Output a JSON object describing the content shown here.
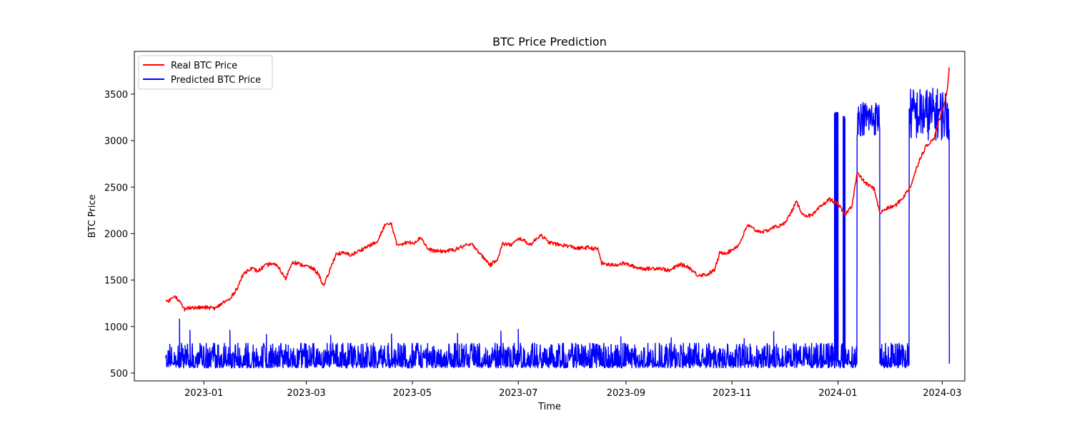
{
  "chart_data": {
    "type": "line",
    "title": "BTC Price Prediction",
    "xlabel": "Time",
    "ylabel": "BTC Price",
    "x_ticks": [
      "2023-01",
      "2023-03",
      "2023-05",
      "2023-07",
      "2023-09",
      "2023-11",
      "2024-01",
      "2024-03"
    ],
    "y_ticks": [
      500,
      1000,
      1500,
      2000,
      2500,
      3000,
      3500
    ],
    "xlim": [
      "2022-11-22",
      "2024-03-14"
    ],
    "ylim": [
      415,
      3960
    ],
    "grid": false,
    "legend_position": "upper-left",
    "series": [
      {
        "name": "Real BTC Price",
        "color": "#ff0000",
        "points": [
          [
            "2022-12-10",
            1265
          ],
          [
            "2022-12-13",
            1290
          ],
          [
            "2022-12-15",
            1340
          ],
          [
            "2022-12-18",
            1270
          ],
          [
            "2022-12-21",
            1180
          ],
          [
            "2022-12-24",
            1210
          ],
          [
            "2022-12-27",
            1200
          ],
          [
            "2022-12-30",
            1205
          ],
          [
            "2023-01-03",
            1205
          ],
          [
            "2023-01-08",
            1195
          ],
          [
            "2023-01-12",
            1260
          ],
          [
            "2023-01-16",
            1290
          ],
          [
            "2023-01-20",
            1410
          ],
          [
            "2023-01-24",
            1570
          ],
          [
            "2023-01-28",
            1630
          ],
          [
            "2023-02-01",
            1595
          ],
          [
            "2023-02-05",
            1650
          ],
          [
            "2023-02-09",
            1680
          ],
          [
            "2023-02-13",
            1640
          ],
          [
            "2023-02-17",
            1510
          ],
          [
            "2023-02-21",
            1700
          ],
          [
            "2023-02-25",
            1670
          ],
          [
            "2023-03-01",
            1650
          ],
          [
            "2023-03-05",
            1620
          ],
          [
            "2023-03-08",
            1565
          ],
          [
            "2023-03-11",
            1430
          ],
          [
            "2023-03-14",
            1580
          ],
          [
            "2023-03-18",
            1780
          ],
          [
            "2023-03-22",
            1790
          ],
          [
            "2023-03-27",
            1770
          ],
          [
            "2023-04-01",
            1820
          ],
          [
            "2023-04-06",
            1870
          ],
          [
            "2023-04-11",
            1910
          ],
          [
            "2023-04-15",
            2090
          ],
          [
            "2023-04-19",
            2105
          ],
          [
            "2023-04-22",
            1880
          ],
          [
            "2023-04-27",
            1900
          ],
          [
            "2023-05-02",
            1905
          ],
          [
            "2023-05-06",
            1960
          ],
          [
            "2023-05-10",
            1830
          ],
          [
            "2023-05-15",
            1810
          ],
          [
            "2023-05-20",
            1810
          ],
          [
            "2023-05-26",
            1830
          ],
          [
            "2023-05-31",
            1870
          ],
          [
            "2023-06-05",
            1880
          ],
          [
            "2023-06-10",
            1760
          ],
          [
            "2023-06-15",
            1660
          ],
          [
            "2023-06-19",
            1730
          ],
          [
            "2023-06-22",
            1890
          ],
          [
            "2023-06-27",
            1880
          ],
          [
            "2023-07-02",
            1950
          ],
          [
            "2023-07-08",
            1880
          ],
          [
            "2023-07-14",
            1990
          ],
          [
            "2023-07-18",
            1910
          ],
          [
            "2023-07-24",
            1880
          ],
          [
            "2023-07-29",
            1870
          ],
          [
            "2023-08-04",
            1840
          ],
          [
            "2023-08-10",
            1850
          ],
          [
            "2023-08-16",
            1830
          ],
          [
            "2023-08-18",
            1680
          ],
          [
            "2023-08-24",
            1660
          ],
          [
            "2023-08-31",
            1680
          ],
          [
            "2023-09-07",
            1635
          ],
          [
            "2023-09-13",
            1620
          ],
          [
            "2023-09-20",
            1630
          ],
          [
            "2023-09-26",
            1600
          ],
          [
            "2023-10-02",
            1670
          ],
          [
            "2023-10-07",
            1640
          ],
          [
            "2023-10-12",
            1555
          ],
          [
            "2023-10-18",
            1560
          ],
          [
            "2023-10-22",
            1610
          ],
          [
            "2023-10-25",
            1790
          ],
          [
            "2023-10-30",
            1800
          ],
          [
            "2023-11-05",
            1880
          ],
          [
            "2023-11-10",
            2090
          ],
          [
            "2023-11-15",
            2030
          ],
          [
            "2023-11-20",
            2020
          ],
          [
            "2023-11-25",
            2070
          ],
          [
            "2023-11-30",
            2090
          ],
          [
            "2023-12-04",
            2190
          ],
          [
            "2023-12-08",
            2340
          ],
          [
            "2023-12-12",
            2200
          ],
          [
            "2023-12-17",
            2190
          ],
          [
            "2023-12-22",
            2290
          ],
          [
            "2023-12-27",
            2370
          ],
          [
            "2024-01-01",
            2320
          ],
          [
            "2024-01-05",
            2200
          ],
          [
            "2024-01-09",
            2300
          ],
          [
            "2024-01-12",
            2650
          ],
          [
            "2024-01-17",
            2540
          ],
          [
            "2024-01-22",
            2480
          ],
          [
            "2024-01-25",
            2220
          ],
          [
            "2024-01-29",
            2270
          ],
          [
            "2024-02-03",
            2300
          ],
          [
            "2024-02-08",
            2400
          ],
          [
            "2024-02-12",
            2520
          ],
          [
            "2024-02-17",
            2800
          ],
          [
            "2024-02-21",
            2950
          ],
          [
            "2024-02-25",
            3010
          ],
          [
            "2024-02-28",
            3200
          ],
          [
            "2024-03-02",
            3380
          ],
          [
            "2024-03-04",
            3560
          ],
          [
            "2024-03-05",
            3790
          ]
        ]
      },
      {
        "name": "Predicted BTC Price",
        "color": "#0000ff",
        "start": "2022-12-10",
        "end": "2024-03-05",
        "baseline_min": 555,
        "baseline_max": 820,
        "spikes": [
          [
            "2022-12-18",
            1080
          ],
          [
            "2022-12-24",
            960
          ],
          [
            "2023-01-16",
            960
          ],
          [
            "2023-02-06",
            915
          ],
          [
            "2023-03-15",
            905
          ],
          [
            "2023-04-19",
            920
          ],
          [
            "2023-05-27",
            925
          ],
          [
            "2023-06-21",
            950
          ],
          [
            "2023-07-01",
            970
          ],
          [
            "2023-08-29",
            890
          ],
          [
            "2023-09-27",
            880
          ],
          [
            "2023-11-08",
            870
          ],
          [
            "2023-11-25",
            945
          ]
        ],
        "high_segments": [
          [
            "2023-12-30",
            "2024-01-01",
            3250,
            3310
          ],
          [
            "2024-01-04",
            "2024-01-05",
            3230,
            3270
          ],
          [
            "2024-01-12",
            "2024-01-25",
            3050,
            3430
          ],
          [
            "2024-02-11",
            "2024-03-05",
            3000,
            3570
          ]
        ],
        "gaps": [
          [
            "2024-01-12",
            "2024-01-25"
          ],
          [
            "2024-02-11",
            "2024-03-05"
          ]
        ]
      }
    ]
  }
}
